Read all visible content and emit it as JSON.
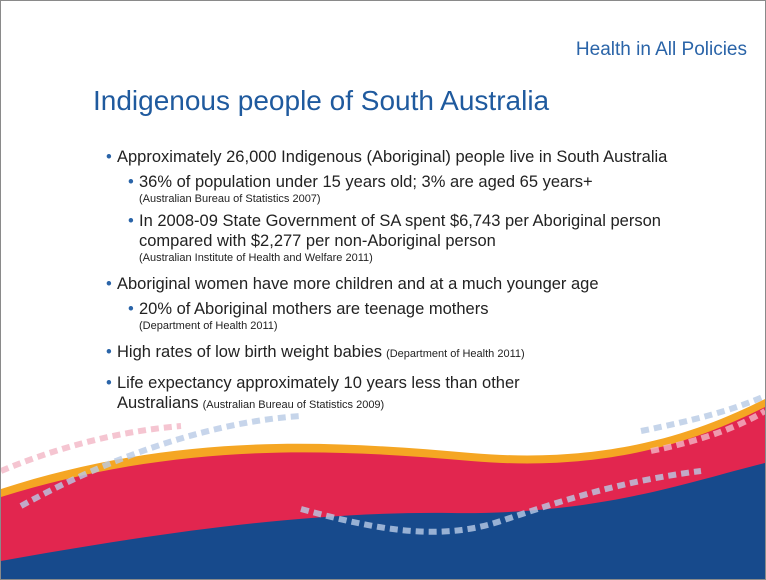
{
  "header": {
    "subtitle": "Health in All Policies",
    "title": "Indigenous people of South Australia"
  },
  "bullets": [
    {
      "text": "Approximately 26,000 Indigenous (Aboriginal) people live in South Australia",
      "sub": [
        {
          "text": "36% of population under 15 years old; 3% are aged 65 years+",
          "source": "(Australian Bureau of Statistics 2007)"
        },
        {
          "text": "In 2008-09 State Government of SA spent $6,743 per Aboriginal person compared with $2,277 per non-Aboriginal person",
          "source": "(Australian Institute of Health and Welfare 2011)"
        }
      ]
    },
    {
      "text": "Aboriginal women have more children and at a much younger age",
      "sub": [
        {
          "text": "20% of Aboriginal mothers are teenage mothers",
          "source": "(Department of Health 2011)"
        }
      ]
    },
    {
      "text": "High rates of low birth weight babies",
      "source": "(Department of Health 2011)"
    },
    {
      "text": "Life expectancy approximately 10 years less than other Australians",
      "source": "(Australian Bureau of Statistics 2009)"
    }
  ]
}
